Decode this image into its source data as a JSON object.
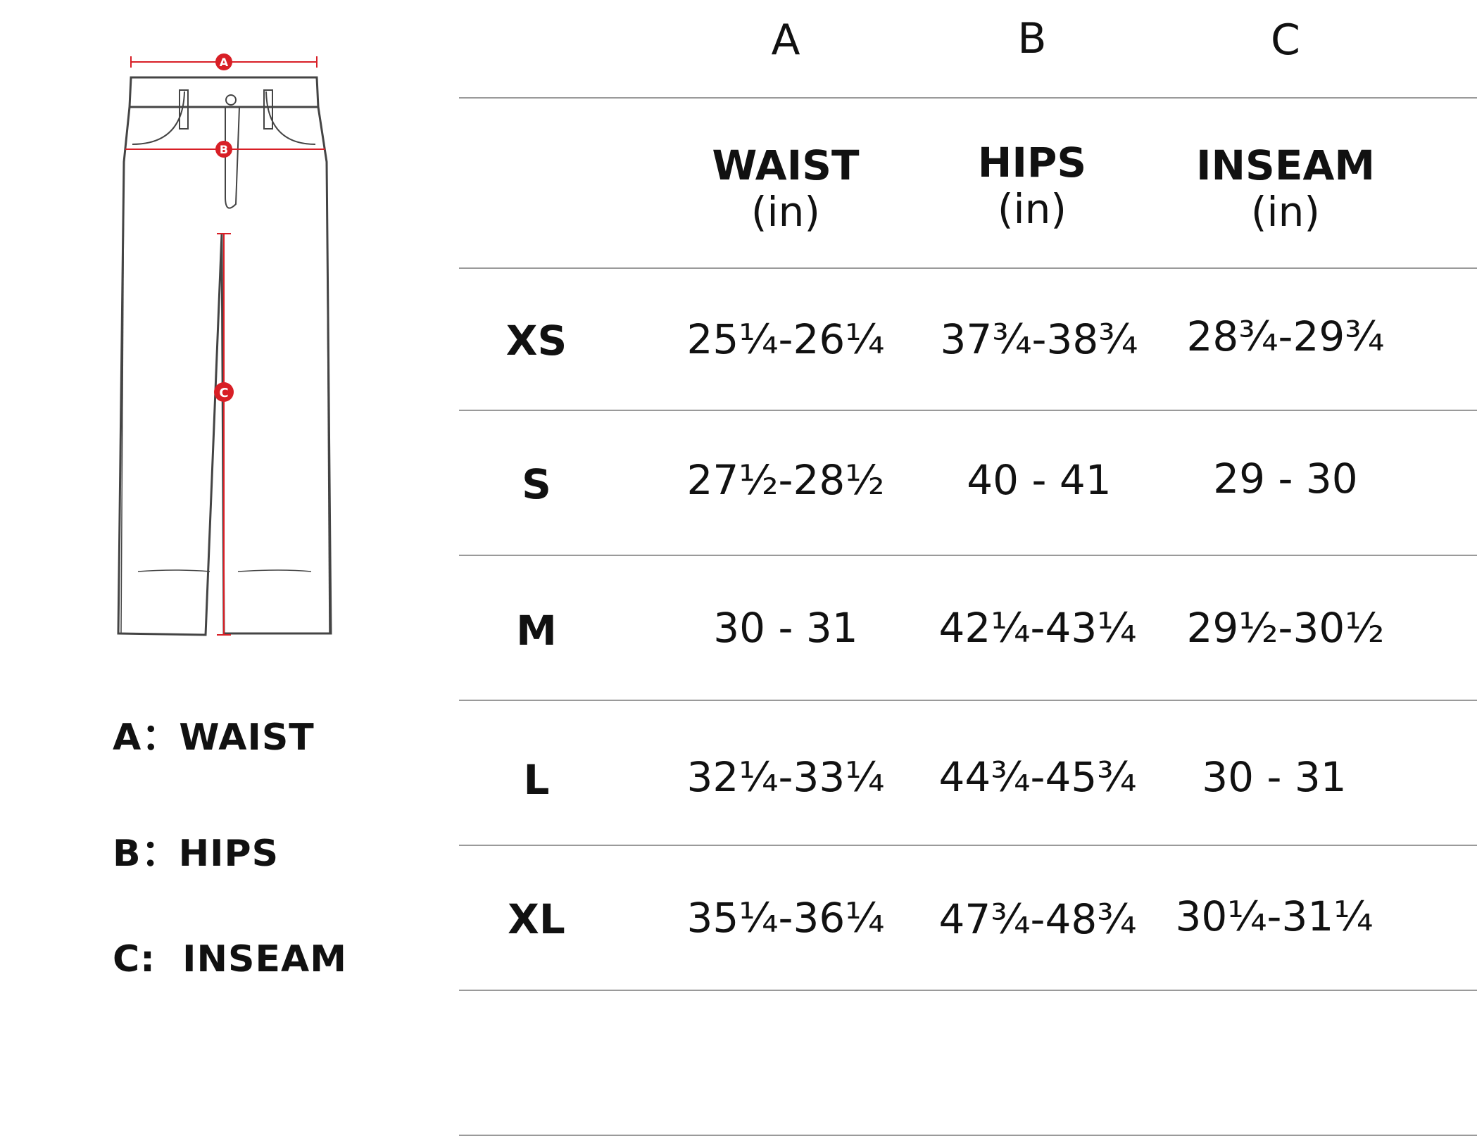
{
  "diagram": {
    "markers": [
      "A",
      "B",
      "C"
    ]
  },
  "legend": [
    "A：WAIST",
    "B：HIPS",
    "C:  INSEAM"
  ],
  "table": {
    "letters": [
      "A",
      "B",
      "C"
    ],
    "columns": [
      {
        "name": "WAIST",
        "unit": "(in)"
      },
      {
        "name": "HIPS",
        "unit": "(in)"
      },
      {
        "name": "INSEAM",
        "unit": "(in)"
      }
    ],
    "rows": [
      {
        "size": "XS",
        "values": [
          "25¼-26¼",
          "37¾-38¾",
          "28¾-29¾"
        ]
      },
      {
        "size": "S",
        "values": [
          "27½-28½",
          "40 - 41",
          "29 - 30"
        ]
      },
      {
        "size": "M",
        "values": [
          "30 - 31",
          "42¼-43¼",
          "29½-30½"
        ]
      },
      {
        "size": "L",
        "values": [
          "32¼-33¼",
          "44¾-45¾",
          "30 - 31"
        ]
      },
      {
        "size": "XL",
        "values": [
          "35¼-36¼",
          "47¾-48¾",
          "30¼-31¼"
        ]
      }
    ]
  },
  "colors": {
    "marker": "#d81f26",
    "rule": "#9a9a9a",
    "text": "#111111",
    "outline": "#444444"
  }
}
